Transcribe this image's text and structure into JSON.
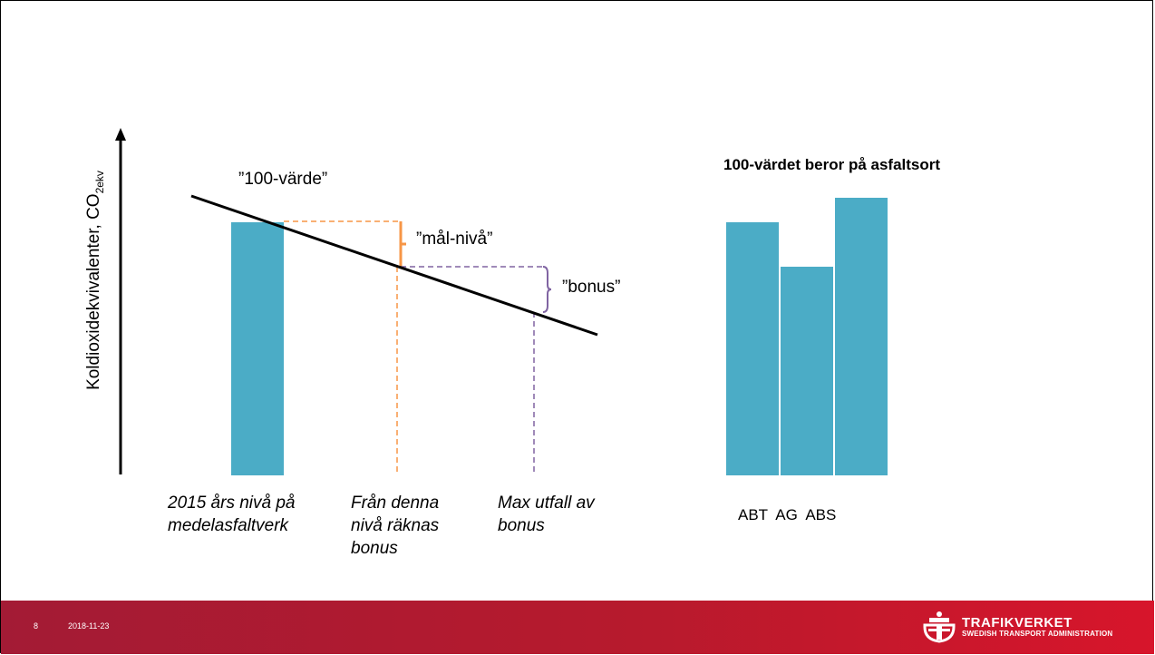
{
  "diagram": {
    "ylabel_main": "Koldioxidekvivalenter, CO",
    "ylabel_sub": "2ekv",
    "label_100": "”100-värde”",
    "label_mal": "”mål-nivå”",
    "label_bonus": "”bonus”",
    "caption_2015": "2015 års nivå på medelasfaltverk",
    "caption_fran": "Från denna nivå räknas bonus",
    "caption_max": "Max utfall av bonus",
    "right_title": "100-värdet beror på asfaltsort",
    "categories": "ABT  AG  ABS"
  },
  "chart_data": {
    "type": "bar",
    "title": "100-värdet beror på asfaltsort",
    "categories": [
      "ABT",
      "AG",
      "ABS"
    ],
    "values": [
      100,
      82,
      110
    ]
  },
  "colors": {
    "bar": "#4bacc6",
    "orange": "#f79646",
    "purple": "#8064a2",
    "footer": "#b71a2d"
  },
  "footer": {
    "page_number": "8",
    "date": "2018-11-23",
    "brand_name": "TRAFIKVERKET",
    "brand_sub": "SWEDISH TRANSPORT ADMINISTRATION",
    "logo_icon": "trafikverket-crown-logo-icon"
  }
}
